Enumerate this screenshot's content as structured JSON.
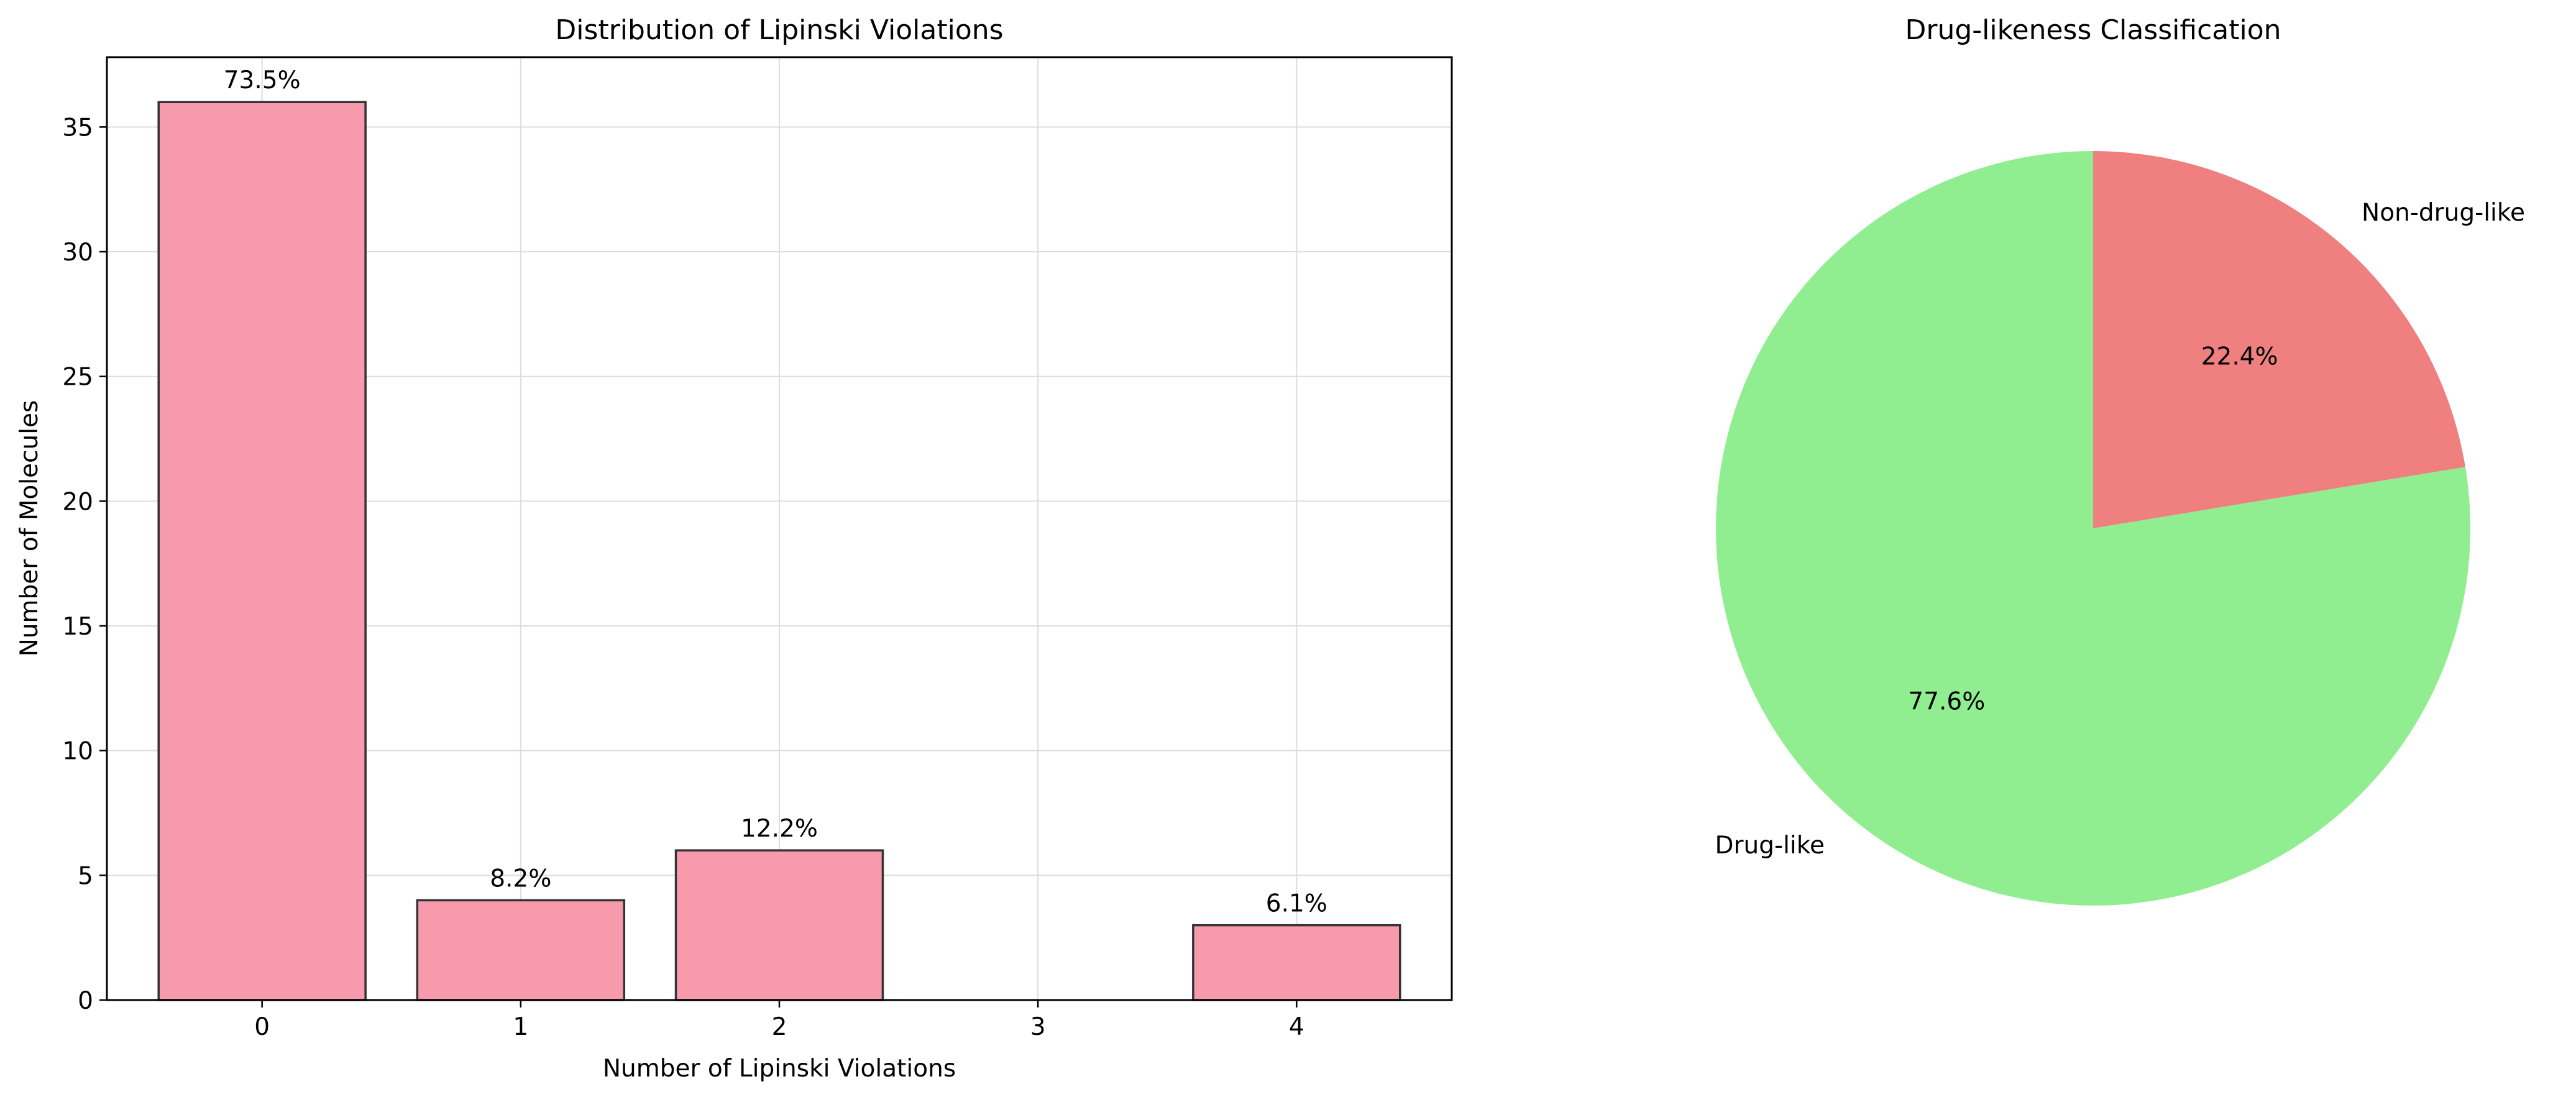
{
  "chart_data": [
    {
      "type": "bar",
      "title": "Distribution of Lipinski Violations",
      "xlabel": "Number of Lipinski Violations",
      "ylabel": "Number of Molecules",
      "categories": [
        "0",
        "1",
        "2",
        "3",
        "4"
      ],
      "values": [
        36,
        4,
        6,
        0,
        3
      ],
      "bar_labels": [
        "73.5%",
        "8.2%",
        "12.2%",
        "",
        "6.1%"
      ],
      "ylim": [
        0,
        37.8
      ],
      "yticks": [
        0,
        5,
        10,
        15,
        20,
        25,
        30,
        35
      ],
      "grid": true,
      "colors": {
        "bar": "#f79aac",
        "edge": "#333333",
        "grid": "#dddddd"
      }
    },
    {
      "type": "pie",
      "title": "Drug-likeness Classification",
      "labels": [
        "Drug-like",
        "Non-drug-like"
      ],
      "values": [
        77.6,
        22.4
      ],
      "autopct": [
        "77.6%",
        "22.4%"
      ],
      "colors": [
        "#90ee90",
        "#f08080"
      ],
      "start_angle": 90
    }
  ]
}
